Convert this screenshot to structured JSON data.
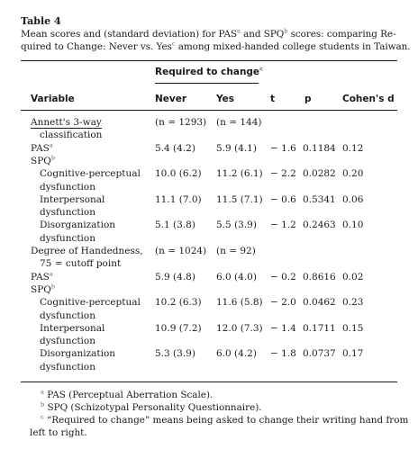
{
  "table": {
    "label": "Table 4",
    "caption_line1_a": "Mean scores and (standard deviation) for PAS",
    "caption_sup_a": "a",
    "caption_line1_b": " and SPQ",
    "caption_sup_b": "b",
    "caption_line1_c": " scores: comparing Re-",
    "caption_line2_a": "quired to Change: Never vs. Yes",
    "caption_sup_c": "c",
    "caption_line2_b": " among mixed-handed college students in Taiwan.",
    "group_header": "Required to change",
    "group_header_sup": "c",
    "columns": {
      "variable": "Variable",
      "never": "Never",
      "yes": "Yes",
      "t": "t",
      "p": "p",
      "d": "Cohen's d"
    },
    "rows": [
      {
        "variable": "Annett's 3-way",
        "never": "(n = 1293)",
        "yes": "(n = 144)",
        "t": "",
        "p": "",
        "d": "",
        "sup": ""
      },
      {
        "variable": "classification",
        "never": "",
        "yes": "",
        "t": "",
        "p": "",
        "d": "",
        "sup": ""
      },
      {
        "variable": "PAS",
        "sup": "a",
        "never": "5.4 (4.2)",
        "yes": "5.9 (4.1)",
        "t": "− 1.6",
        "p": "0.1184",
        "d": "0.12"
      },
      {
        "variable": "SPQ",
        "sup": "b",
        "never": "",
        "yes": "",
        "t": "",
        "p": "",
        "d": ""
      },
      {
        "variable": "Cognitive-perceptual",
        "sup": "",
        "never": "10.0 (6.2)",
        "yes": "11.2 (6.1)",
        "t": "− 2.2",
        "p": "0.0282",
        "d": "0.20"
      },
      {
        "variable": "dysfunction",
        "sup": "",
        "never": "",
        "yes": "",
        "t": "",
        "p": "",
        "d": ""
      },
      {
        "variable": "Interpersonal",
        "sup": "",
        "never": "11.1 (7.0)",
        "yes": "11.5 (7.1)",
        "t": "− 0.6",
        "p": "0.5341",
        "d": "0.06"
      },
      {
        "variable": "dysfunction",
        "sup": "",
        "never": "",
        "yes": "",
        "t": "",
        "p": "",
        "d": ""
      },
      {
        "variable": "Disorganization",
        "sup": "",
        "never": "5.1 (3.8)",
        "yes": "5.5 (3.9)",
        "t": "− 1.2",
        "p": "0.2463",
        "d": "0.10"
      },
      {
        "variable": "dysfunction",
        "sup": "",
        "never": "",
        "yes": "",
        "t": "",
        "p": "",
        "d": ""
      },
      {
        "variable": "Degree of Handedness,",
        "sup": "",
        "never": "(n = 1024)",
        "yes": "(n = 92)",
        "t": "",
        "p": "",
        "d": ""
      },
      {
        "variable": "75 = cutoff point",
        "sup": "",
        "never": "",
        "yes": "",
        "t": "",
        "p": "",
        "d": ""
      },
      {
        "variable": "PAS",
        "sup": "a",
        "never": "5.9 (4.8)",
        "yes": "6.0 (4.0)",
        "t": "− 0.2",
        "p": "0.8616",
        "d": "0.02"
      },
      {
        "variable": "SPQ",
        "sup": "b",
        "never": "",
        "yes": "",
        "t": "",
        "p": "",
        "d": ""
      },
      {
        "variable": "Cognitive-perceptual",
        "sup": "",
        "never": "10.2 (6.3)",
        "yes": "11.6 (5.8)",
        "t": "− 2.0",
        "p": "0.0462",
        "d": "0.23"
      },
      {
        "variable": "dysfunction",
        "sup": "",
        "never": "",
        "yes": "",
        "t": "",
        "p": "",
        "d": ""
      },
      {
        "variable": "Interpersonal",
        "sup": "",
        "never": "10.9 (7.2)",
        "yes": "12.0 (7.3)",
        "t": "− 1.4",
        "p": "0.1711",
        "d": "0.15"
      },
      {
        "variable": "dysfunction",
        "sup": "",
        "never": "",
        "yes": "",
        "t": "",
        "p": "",
        "d": ""
      },
      {
        "variable": "Disorganization",
        "sup": "",
        "never": "5.3 (3.9)",
        "yes": "6.0 (4.2)",
        "t": "− 1.8",
        "p": "0.0737",
        "d": "0.17"
      },
      {
        "variable": "dysfunction",
        "sup": "",
        "never": "",
        "yes": "",
        "t": "",
        "p": "",
        "d": ""
      }
    ],
    "footnotes": [
      {
        "mark": "a",
        "text": " PAS (Perceptual Aberration Scale)."
      },
      {
        "mark": "b",
        "text": " SPQ (Schizotypal Personality Questionnaire)."
      },
      {
        "mark": "c",
        "text": " “Required to change” means being asked to change their writing hand from"
      },
      {
        "mark": "",
        "text": "left to right."
      }
    ]
  }
}
